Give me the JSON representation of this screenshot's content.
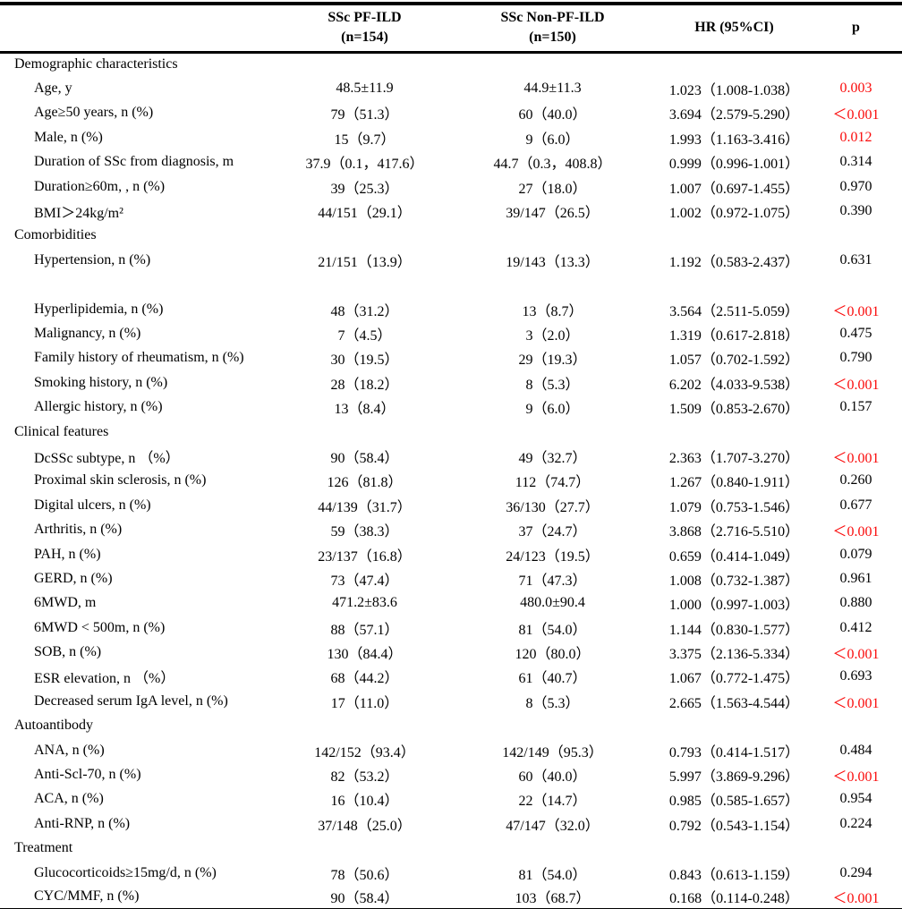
{
  "colors": {
    "text": "#000000",
    "significant_p": "#fa0a0a",
    "border": "#000000",
    "background": "#ffffff"
  },
  "table": {
    "header": {
      "col1": "",
      "col2_line1": "SSc PF-ILD",
      "col2_line2": "(n=154)",
      "col3_line1": "SSc Non-PF-ILD",
      "col3_line2": "(n=150)",
      "col4": "HR (95%CI)",
      "col5": "p"
    },
    "rows": [
      {
        "type": "section",
        "label": "Demographic characteristics",
        "pf": "",
        "nonpf": "",
        "hr": "",
        "p": "",
        "sig": false
      },
      {
        "type": "data",
        "label": "Age, y",
        "pf": "48.5±11.9",
        "nonpf": "44.9±11.3",
        "hr": "1.023（1.008-1.038）",
        "p": "0.003",
        "sig": true
      },
      {
        "type": "data",
        "label": "Age≥50 years, n (%)",
        "pf": "79（51.3）",
        "nonpf": "60（40.0）",
        "hr": "3.694（2.579-5.290）",
        "p": "＜0.001",
        "sig": true
      },
      {
        "type": "data",
        "label": "Male, n (%)",
        "pf": "15（9.7）",
        "nonpf": "9（6.0）",
        "hr": "1.993（1.163-3.416）",
        "p": "0.012",
        "sig": true
      },
      {
        "type": "data",
        "label": "Duration of SSc from diagnosis, m",
        "pf": "37.9（0.1，417.6）",
        "nonpf": "44.7（0.3，408.8）",
        "hr": "0.999（0.996-1.001）",
        "p": "0.314",
        "sig": false
      },
      {
        "type": "data",
        "label": "Duration≥60m, , n (%)",
        "pf": "39（25.3）",
        "nonpf": "27（18.0）",
        "hr": "1.007（0.697-1.455）",
        "p": "0.970",
        "sig": false
      },
      {
        "type": "data",
        "label": "BMI＞24kg/m²",
        "pf": "44/151（29.1）",
        "nonpf": "39/147（26.5）",
        "hr": "1.002（0.972-1.075）",
        "p": "0.390",
        "sig": false
      },
      {
        "type": "section",
        "label": "Comorbidities",
        "pf": "",
        "nonpf": "",
        "hr": "",
        "p": "",
        "sig": false
      },
      {
        "type": "data",
        "label": "Hypertension, n (%)",
        "pf": "21/151（13.9）",
        "nonpf": "19/143（13.3）",
        "hr": "1.192（0.583-2.437）",
        "p": "0.631",
        "sig": false
      },
      {
        "type": "spacer",
        "label": "",
        "pf": "",
        "nonpf": "",
        "hr": "",
        "p": "",
        "sig": false
      },
      {
        "type": "data",
        "label": "Hyperlipidemia, n (%)",
        "pf": "48（31.2）",
        "nonpf": "13（8.7）",
        "hr": "3.564（2.511-5.059）",
        "p": "＜0.001",
        "sig": true
      },
      {
        "type": "data",
        "label": "Malignancy, n (%)",
        "pf": "7（4.5）",
        "nonpf": "3（2.0）",
        "hr": "1.319（0.617-2.818）",
        "p": "0.475",
        "sig": false
      },
      {
        "type": "data",
        "label": "Family history of rheumatism, n (%)",
        "pf": "30（19.5）",
        "nonpf": "29（19.3）",
        "hr": "1.057（0.702-1.592）",
        "p": "0.790",
        "sig": false
      },
      {
        "type": "data",
        "label": "Smoking history, n (%)",
        "pf": "28（18.2）",
        "nonpf": "8（5.3）",
        "hr": "6.202（4.033-9.538）",
        "p": "＜0.001",
        "sig": true
      },
      {
        "type": "data",
        "label": "Allergic history, n (%)",
        "pf": "13（8.4）",
        "nonpf": "9（6.0）",
        "hr": "1.509（0.853-2.670）",
        "p": "0.157",
        "sig": false
      },
      {
        "type": "section",
        "label": "Clinical features",
        "pf": "",
        "nonpf": "",
        "hr": "",
        "p": "",
        "sig": false
      },
      {
        "type": "data",
        "label": "DcSSc subtype, n （%）",
        "pf": "90（58.4）",
        "nonpf": "49（32.7）",
        "hr": "2.363（1.707-3.270）",
        "p": "＜0.001",
        "sig": true
      },
      {
        "type": "data",
        "label": "Proximal skin sclerosis, n (%)",
        "pf": "126（81.8）",
        "nonpf": "112（74.7）",
        "hr": "1.267（0.840-1.911）",
        "p": "0.260",
        "sig": false
      },
      {
        "type": "data",
        "label": "Digital ulcers, n (%)",
        "pf": "44/139（31.7）",
        "nonpf": "36/130（27.7）",
        "hr": "1.079（0.753-1.546）",
        "p": "0.677",
        "sig": false
      },
      {
        "type": "data",
        "label": "Arthritis, n (%)",
        "pf": "59（38.3）",
        "nonpf": "37（24.7）",
        "hr": "3.868（2.716-5.510）",
        "p": "＜0.001",
        "sig": true
      },
      {
        "type": "data",
        "label": "PAH, n (%)",
        "pf": "23/137（16.8）",
        "nonpf": "24/123（19.5）",
        "hr": "0.659（0.414-1.049）",
        "p": "0.079",
        "sig": false
      },
      {
        "type": "data",
        "label": "GERD, n (%)",
        "pf": "73（47.4）",
        "nonpf": "71（47.3）",
        "hr": "1.008（0.732-1.387）",
        "p": "0.961",
        "sig": false
      },
      {
        "type": "data",
        "label": "6MWD, m",
        "pf": "471.2±83.6",
        "nonpf": "480.0±90.4",
        "hr": "1.000（0.997-1.003）",
        "p": "0.880",
        "sig": false
      },
      {
        "type": "data",
        "label": "6MWD < 500m, n (%)",
        "pf": "88（57.1）",
        "nonpf": "81（54.0）",
        "hr": "1.144（0.830-1.577）",
        "p": "0.412",
        "sig": false
      },
      {
        "type": "data",
        "label": "SOB, n (%)",
        "pf": "130（84.4）",
        "nonpf": "120（80.0）",
        "hr": "3.375（2.136-5.334）",
        "p": "＜0.001",
        "sig": true
      },
      {
        "type": "data",
        "label": "ESR elevation, n （%）",
        "pf": "68（44.2）",
        "nonpf": "61（40.7）",
        "hr": "1.067（0.772-1.475）",
        "p": "0.693",
        "sig": false
      },
      {
        "type": "data",
        "label": "Decreased serum IgA level, n (%)",
        "pf": "17（11.0）",
        "nonpf": "8（5.3）",
        "hr": "2.665（1.563-4.544）",
        "p": "＜0.001",
        "sig": true
      },
      {
        "type": "section",
        "label": "Autoantibody",
        "pf": "",
        "nonpf": "",
        "hr": "",
        "p": "",
        "sig": false
      },
      {
        "type": "data",
        "label": "ANA, n (%)",
        "pf": "142/152（93.4）",
        "nonpf": "142/149（95.3）",
        "hr": "0.793（0.414-1.517）",
        "p": "0.484",
        "sig": false
      },
      {
        "type": "data",
        "label": "Anti-Scl-70, n (%)",
        "pf": "82（53.2）",
        "nonpf": "60（40.0）",
        "hr": "5.997（3.869-9.296）",
        "p": "＜0.001",
        "sig": true
      },
      {
        "type": "data",
        "label": "ACA, n (%)",
        "pf": "16（10.4）",
        "nonpf": "22（14.7）",
        "hr": "0.985（0.585-1.657）",
        "p": "0.954",
        "sig": false
      },
      {
        "type": "data",
        "label": "Anti-RNP, n (%)",
        "pf": "37/148（25.0）",
        "nonpf": "47/147（32.0）",
        "hr": "0.792（0.543-1.154）",
        "p": "0.224",
        "sig": false
      },
      {
        "type": "section",
        "label": "Treatment",
        "pf": "",
        "nonpf": "",
        "hr": "",
        "p": "",
        "sig": false
      },
      {
        "type": "data",
        "label": "Glucocorticoids≥15mg/d, n (%)",
        "pf": "78（50.6）",
        "nonpf": "81（54.0）",
        "hr": "0.843（0.613-1.159）",
        "p": "0.294",
        "sig": false
      },
      {
        "type": "data",
        "label": "CYC/MMF, n (%)",
        "pf": "90（58.4）",
        "nonpf": "103（68.7）",
        "hr": "0.168（0.114-0.248）",
        "p": "＜0.001",
        "sig": true
      }
    ]
  }
}
